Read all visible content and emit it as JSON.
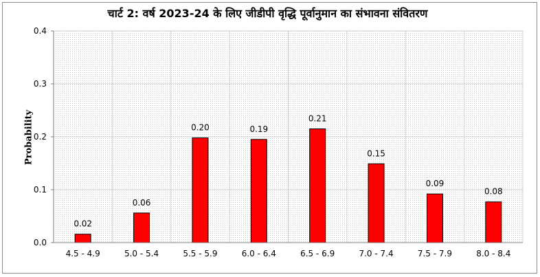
{
  "chart_data": {
    "type": "bar",
    "title": "चार्ट 2: वर्ष 2023-24 के लिए जीडीपी वृद्धि पूर्वानुमान का संभावना संवितरण",
    "xlabel": "",
    "ylabel": "Probability",
    "ylim": [
      0,
      0.4
    ],
    "yticks": [
      "0.0",
      "0.1",
      "0.2",
      "0.3",
      "0.4"
    ],
    "categories": [
      "4.5 - 4.9",
      "5.0 - 5.4",
      "5.5 - 5.9",
      "6.0 - 6.4",
      "6.5 - 6.9",
      "7.0 - 7.4",
      "7.5 - 7.9",
      "8.0 - 8.4"
    ],
    "values": [
      0.016,
      0.056,
      0.198,
      0.195,
      0.215,
      0.149,
      0.092,
      0.077
    ],
    "data_labels": [
      "0.02",
      "0.06",
      "0.20",
      "0.19",
      "0.21",
      "0.15",
      "0.09",
      "0.08"
    ],
    "bar_color": "#ff0000",
    "grid": true,
    "legend": "none"
  }
}
